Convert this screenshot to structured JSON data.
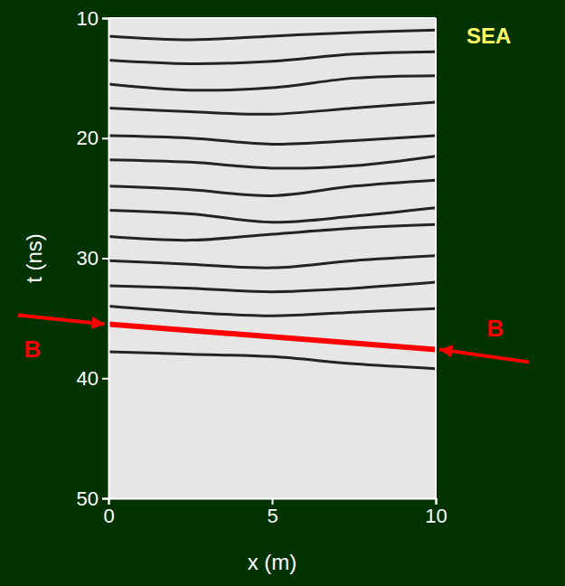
{
  "chart_data": {
    "type": "line",
    "x_label": "x (m)",
    "y_label": "t (ns)",
    "xlim": [
      0,
      10
    ],
    "ylim": [
      50,
      10
    ],
    "xticks": [
      0,
      5,
      10
    ],
    "yticks": [
      10,
      20,
      30,
      40,
      50
    ],
    "annotations": [
      "SEA",
      "B",
      "B"
    ],
    "series": [
      {
        "color": "#000000",
        "x": [
          0,
          2.5,
          5,
          7.5,
          10
        ],
        "values": [
          11.5,
          11.8,
          11.5,
          11.2,
          11.0
        ]
      },
      {
        "color": "#000000",
        "x": [
          0,
          2.5,
          5,
          7.5,
          10
        ],
        "values": [
          13.5,
          13.8,
          13.6,
          13.0,
          12.8
        ]
      },
      {
        "color": "#000000",
        "x": [
          0,
          2.5,
          5,
          7.5,
          10
        ],
        "values": [
          15.5,
          16.0,
          15.8,
          15.0,
          14.8
        ]
      },
      {
        "color": "#000000",
        "x": [
          0,
          2.5,
          5,
          7.5,
          10
        ],
        "values": [
          17.5,
          17.8,
          18.0,
          17.5,
          17.0
        ]
      },
      {
        "color": "#000000",
        "x": [
          0,
          2.5,
          5,
          7.5,
          10
        ],
        "values": [
          19.8,
          20.0,
          20.5,
          20.2,
          19.8
        ]
      },
      {
        "color": "#000000",
        "x": [
          0,
          2.5,
          5,
          7.5,
          10
        ],
        "values": [
          21.8,
          22.0,
          22.5,
          22.3,
          21.5
        ]
      },
      {
        "color": "#000000",
        "x": [
          0,
          2.5,
          5,
          7.5,
          10
        ],
        "values": [
          24.0,
          24.3,
          24.8,
          24.0,
          23.5
        ]
      },
      {
        "color": "#000000",
        "x": [
          0,
          2.5,
          5,
          7.5,
          10
        ],
        "values": [
          26.0,
          26.3,
          27.0,
          26.5,
          25.8
        ]
      },
      {
        "color": "#000000",
        "x": [
          0,
          2.5,
          5,
          7.5,
          10
        ],
        "values": [
          28.2,
          28.5,
          28.0,
          27.5,
          27.2
        ]
      },
      {
        "color": "#000000",
        "x": [
          0,
          2.5,
          5,
          7.5,
          10
        ],
        "values": [
          30.2,
          30.5,
          30.8,
          30.2,
          29.8
        ]
      },
      {
        "color": "#000000",
        "x": [
          0,
          2.5,
          5,
          7.5,
          10
        ],
        "values": [
          32.3,
          32.5,
          32.8,
          32.5,
          32.0
        ]
      },
      {
        "color": "#000000",
        "x": [
          0,
          2.5,
          5,
          7.5,
          10
        ],
        "values": [
          34.0,
          34.5,
          34.8,
          34.5,
          34.2
        ]
      },
      {
        "color": "#000000",
        "x": [
          0,
          2.5,
          5,
          7.5,
          10
        ],
        "values": [
          37.8,
          38.0,
          38.2,
          38.8,
          39.2
        ]
      },
      {
        "color": "#ff0000",
        "x": [
          0,
          10
        ],
        "values": [
          35.5,
          37.6
        ]
      }
    ]
  }
}
